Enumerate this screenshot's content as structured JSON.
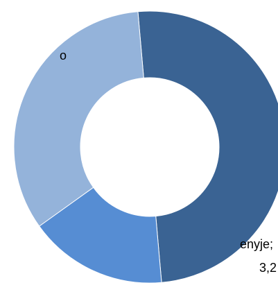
{
  "chart_data": {
    "type": "pie",
    "variant": "donut",
    "slices": [
      {
        "value": 50.0,
        "color": "#3a6393"
      },
      {
        "value": 16.5,
        "color": "#568dd3"
      },
      {
        "value": 33.5,
        "color": "#94b3da"
      }
    ],
    "labels": [
      {
        "text": "o"
      },
      {
        "text": "enyje;"
      },
      {
        "text": "3,2"
      }
    ],
    "legend": "none",
    "grid": false
  }
}
